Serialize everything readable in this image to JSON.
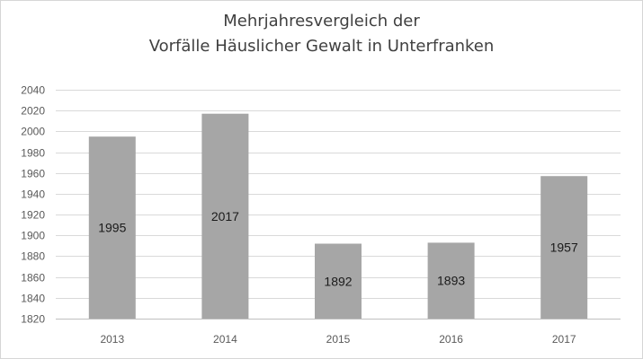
{
  "chart_data": {
    "type": "bar",
    "title_lines": [
      "Mehrjahresvergleich der",
      "Vorfälle Häuslicher Gewalt in Unterfranken"
    ],
    "categories": [
      "2013",
      "2014",
      "2015",
      "2016",
      "2017"
    ],
    "values": [
      1995,
      2017,
      1892,
      1893,
      1957
    ],
    "data_labels": [
      "1995",
      "2017",
      "1892",
      "1893",
      "1957"
    ],
    "xlabel": "",
    "ylabel": "",
    "ylim": [
      1820,
      2040
    ],
    "yticks": [
      1820,
      1840,
      1860,
      1880,
      1900,
      1920,
      1940,
      1960,
      1980,
      2000,
      2020,
      2040
    ],
    "grid": true,
    "legend": "none",
    "bar_color": "#a6a6a6",
    "gridline_color": "#d9d9d9",
    "text_color": "#404040"
  }
}
